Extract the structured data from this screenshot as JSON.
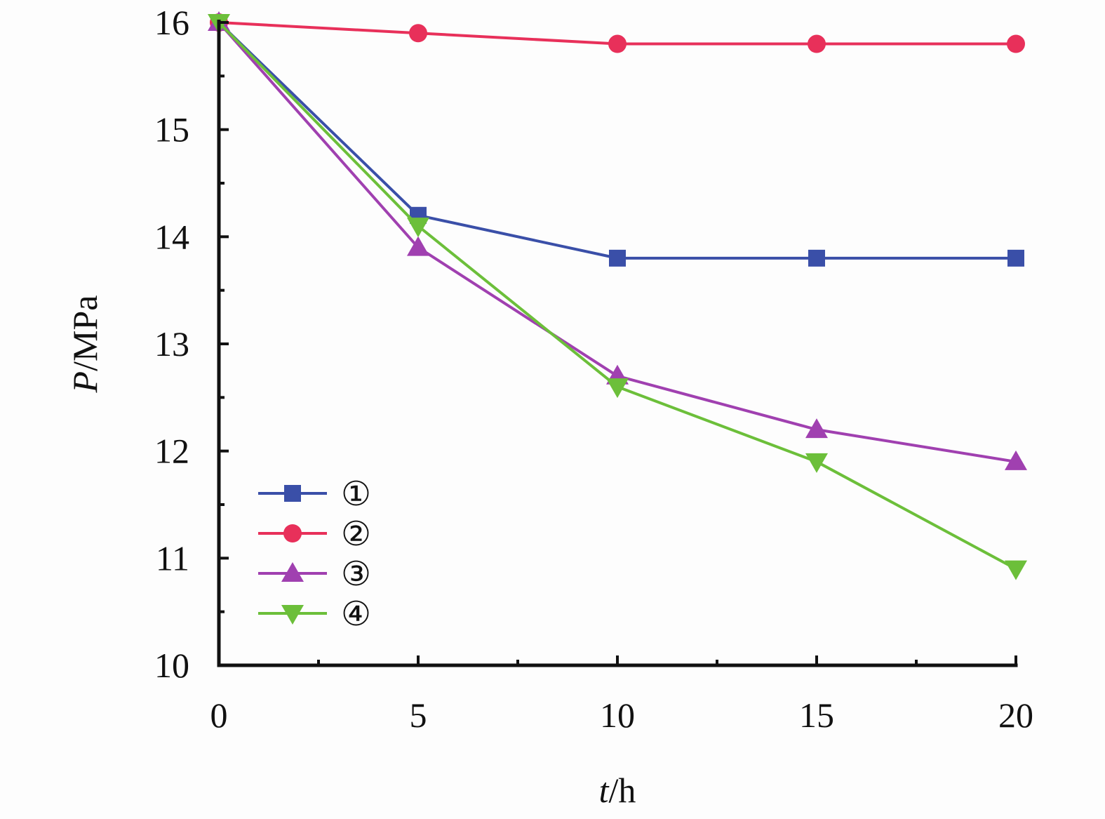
{
  "chart_data": {
    "type": "line",
    "x": [
      0,
      5,
      10,
      15,
      20
    ],
    "xlabel_var": "t",
    "xlabel_unit": "/h",
    "ylabel_var": "P",
    "ylabel_unit": "/MPa",
    "xlim": [
      0,
      20
    ],
    "ylim": [
      10,
      16
    ],
    "xticks": [
      0,
      5,
      10,
      15,
      20
    ],
    "yticks": [
      10,
      11,
      12,
      13,
      14,
      15,
      16
    ],
    "grid": false,
    "legend_position": "bottom-left",
    "series": [
      {
        "name": "①",
        "color": "#3a4fa8",
        "marker": "square",
        "values": [
          16.0,
          14.2,
          13.8,
          13.8,
          13.8
        ]
      },
      {
        "name": "②",
        "color": "#e8305a",
        "marker": "circle",
        "values": [
          16.0,
          15.9,
          15.8,
          15.8,
          15.8
        ]
      },
      {
        "name": "③",
        "color": "#a040b0",
        "marker": "triangle-up",
        "values": [
          16.0,
          13.9,
          12.7,
          12.2,
          11.9
        ]
      },
      {
        "name": "④",
        "color": "#6cbf3a",
        "marker": "triangle-down",
        "values": [
          16.0,
          14.1,
          12.6,
          11.9,
          10.9
        ]
      }
    ]
  }
}
